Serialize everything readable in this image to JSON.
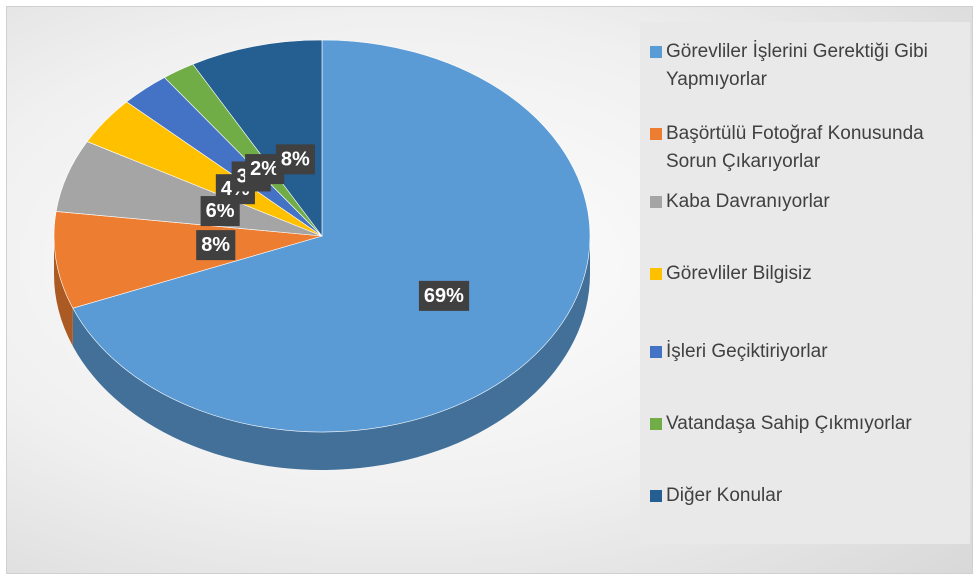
{
  "chart_data": {
    "type": "pie",
    "categories": [
      "Görevliler İşlerini Gerektiği Gibi Yapmıyorlar",
      "Başörtülü Fotoğraf Konusunda Sorun Çıkarıyorlar",
      "Kaba Davranıyorlar",
      "Görevliler Bilgisiz",
      "İşleri Geçiktiriyorlar",
      "Vatandaşa Sahip Çıkmıyorlar",
      "Diğer Konular"
    ],
    "values": [
      69,
      8,
      6,
      4,
      3,
      2,
      8
    ],
    "value_labels": [
      "69%",
      "8%",
      "6%",
      "4%",
      "3%",
      "2%",
      "8%"
    ],
    "colors": [
      "#5b9bd5",
      "#ed7d31",
      "#a5a5a5",
      "#ffc000",
      "#4472c4",
      "#70ad47",
      "#255e91"
    ],
    "legend": "right"
  }
}
